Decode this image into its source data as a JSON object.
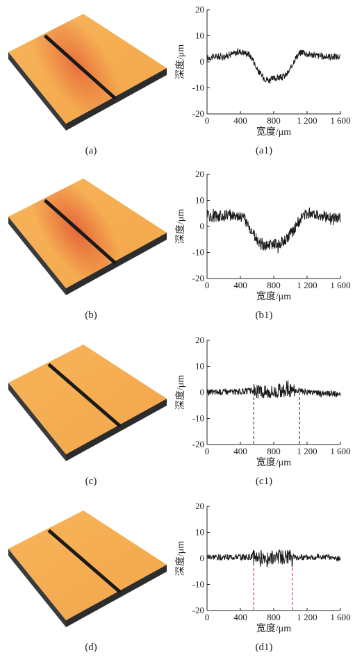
{
  "figure": {
    "panels": [
      {
        "image_caption": "(a)",
        "chart_caption": "(a1)"
      },
      {
        "image_caption": "(b)",
        "chart_caption": "(b1)"
      },
      {
        "image_caption": "(c)",
        "chart_caption": "(c1)"
      },
      {
        "image_caption": "(d)",
        "chart_caption": "(d1)"
      }
    ]
  },
  "colors": {
    "surface_base": "#f4a64a",
    "surface_dark": "#e25a34",
    "groove": "#1a1a1a",
    "side": "#2c2c2c",
    "line": "#1a1a1a",
    "marker_dashed_black": "#222222",
    "marker_dashed_red": "#cc1f1f"
  },
  "chart_data": [
    {
      "type": "line",
      "id": "a1",
      "xlabel": "宽度/μm",
      "ylabel": "深度/μm",
      "xlim": [
        0,
        1600
      ],
      "ylim": [
        -20,
        20
      ],
      "xticks": [
        "0",
        "400",
        "800",
        "1 200",
        "1 600"
      ],
      "yticks": [
        "20",
        "10",
        "0",
        "-10",
        "-20"
      ],
      "series": [
        {
          "x": [
            0,
            100,
            200,
            300,
            400,
            450,
            500,
            550,
            600,
            650,
            700,
            750,
            800,
            850,
            900,
            950,
            1000,
            1050,
            1100,
            1150,
            1200,
            1300,
            1400,
            1500,
            1600
          ],
          "y": [
            1.5,
            2,
            2,
            3,
            4,
            3.5,
            3,
            1,
            -3,
            -5,
            -6.5,
            -7,
            -6.5,
            -6,
            -6,
            -5,
            -3,
            1,
            3,
            4,
            3,
            2.5,
            2,
            2,
            2
          ]
        }
      ],
      "noise": 1.3,
      "markers": []
    },
    {
      "type": "line",
      "id": "b1",
      "xlabel": "宽度/μm",
      "ylabel": "深度/μm",
      "xlim": [
        0,
        1600
      ],
      "ylim": [
        -20,
        20
      ],
      "xticks": [
        "0",
        "400",
        "800",
        "1 200",
        "1 600"
      ],
      "yticks": [
        "20",
        "10",
        "0",
        "-10",
        "-20"
      ],
      "series": [
        {
          "x": [
            0,
            50,
            100,
            200,
            300,
            400,
            450,
            500,
            550,
            600,
            650,
            700,
            750,
            800,
            850,
            900,
            950,
            1000,
            1050,
            1100,
            1150,
            1200,
            1250,
            1300,
            1350,
            1400,
            1500,
            1600
          ],
          "y": [
            5,
            3,
            4,
            4,
            4.5,
            4,
            3,
            0,
            -3,
            -5,
            -7,
            -8,
            -7,
            -6.5,
            -7,
            -6,
            -5,
            -3,
            -1,
            2,
            4,
            5,
            5.5,
            5,
            4.5,
            4,
            3,
            3
          ]
        }
      ],
      "noise": 2.2,
      "markers": []
    },
    {
      "type": "line",
      "id": "c1",
      "xlabel": "宽度/μm",
      "ylabel": "深度/μm",
      "xlim": [
        0,
        1600
      ],
      "ylim": [
        -20,
        20
      ],
      "xticks": [
        "0",
        "400",
        "800",
        "1 200",
        "1 600"
      ],
      "yticks": [
        "20",
        "10",
        "0",
        "-10",
        "-20"
      ],
      "series": [
        {
          "x": [
            0,
            200,
            400,
            500,
            550,
            600,
            700,
            800,
            900,
            1000,
            1050,
            1100,
            1200,
            1300,
            1400,
            1500,
            1600
          ],
          "y": [
            0,
            0.3,
            0.3,
            0.5,
            0.5,
            0.5,
            0.3,
            0.5,
            0.8,
            0.5,
            0.8,
            0.5,
            0,
            -0.3,
            -0.5,
            -0.5,
            -0.7
          ]
        }
      ],
      "noise": 1.2,
      "noisy_range": [
        560,
        1050
      ],
      "noisy_extra": 1.6,
      "markers": [
        {
          "x": 560,
          "color": "#222222"
        },
        {
          "x": 1110,
          "color": "#222222"
        }
      ]
    },
    {
      "type": "line",
      "id": "d1",
      "xlabel": "宽度/μm",
      "ylabel": "深度/μm",
      "xlim": [
        0,
        1600
      ],
      "ylim": [
        -20,
        20
      ],
      "xticks": [
        "0",
        "400",
        "800",
        "1 200",
        "1 600"
      ],
      "yticks": [
        "20",
        "10",
        "0",
        "-10",
        "-20"
      ],
      "series": [
        {
          "x": [
            0,
            200,
            400,
            500,
            560,
            600,
            700,
            800,
            900,
            1000,
            1050,
            1100,
            1200,
            1300,
            1400,
            1500,
            1600
          ],
          "y": [
            0.5,
            0.5,
            0.5,
            0.5,
            0.5,
            0.5,
            0.5,
            0.5,
            0.5,
            0.5,
            0.5,
            0.5,
            0.5,
            0.8,
            0.5,
            0.3,
            0
          ]
        }
      ],
      "noise": 1.2,
      "noisy_range": [
        540,
        1050
      ],
      "noisy_extra": 1.6,
      "markers": [
        {
          "x": 560,
          "color": "#cc1f1f"
        },
        {
          "x": 1025,
          "color": "#cc1f1f"
        }
      ]
    }
  ]
}
